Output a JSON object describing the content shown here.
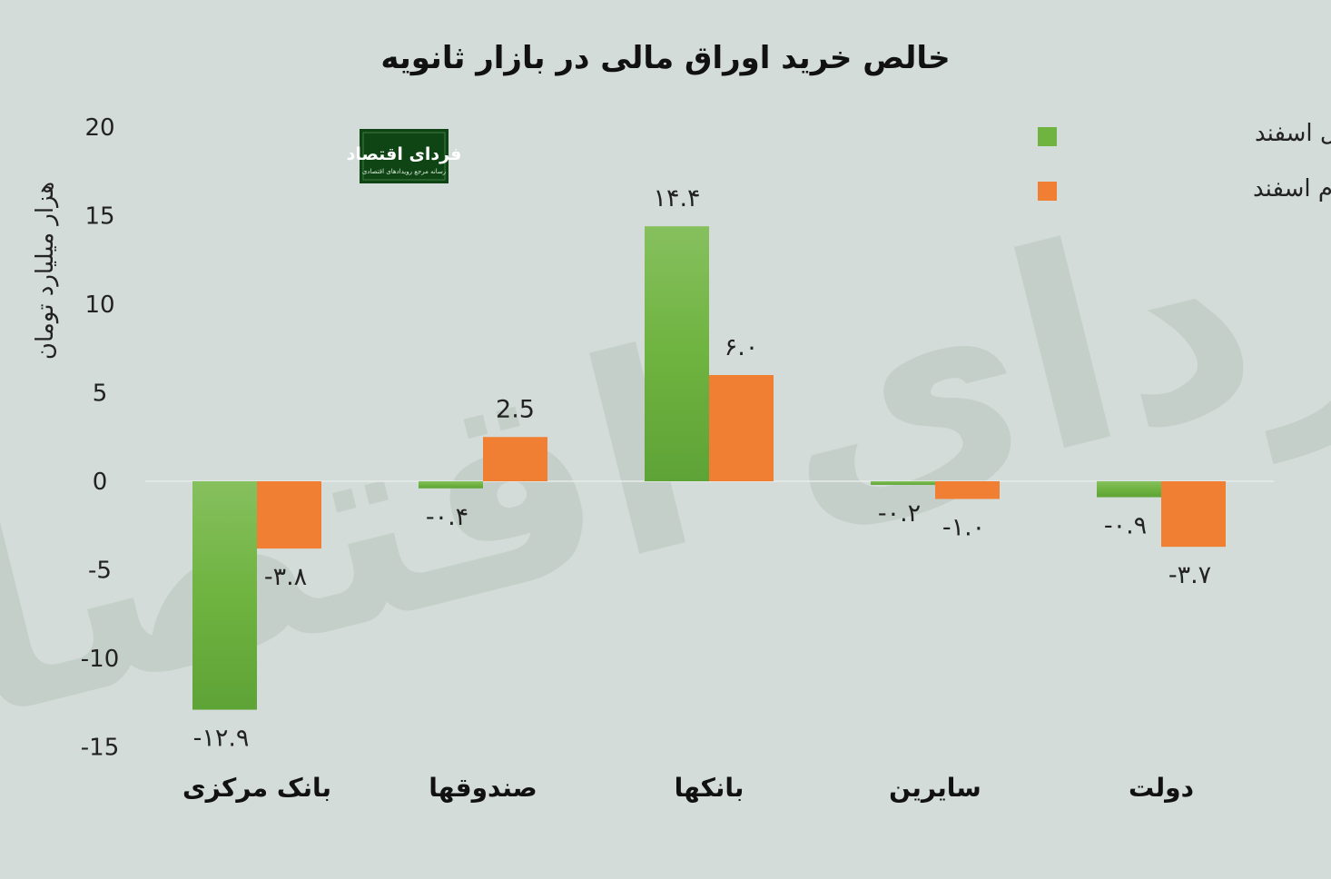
{
  "logo": {
    "text": "فردای اقتصاد",
    "subtitle": "رسانه مرجع رویدادهای اقتصادی"
  },
  "colors": {
    "background": "#d3dcd8",
    "series1": "#6fb340",
    "series2": "#f07f33",
    "logo_bg": "#0f4514"
  },
  "chart_data": {
    "type": "bar",
    "title": "خالص خرید اوراق مالی در بازار ثانویه",
    "ylabel": "هزار میلیارد تومان",
    "xlabel": "",
    "ylim": [
      -15,
      20
    ],
    "yticks": [
      {
        "value": 20,
        "label": "20"
      },
      {
        "value": 15,
        "label": "15"
      },
      {
        "value": 10,
        "label": "10"
      },
      {
        "value": 5,
        "label": "5"
      },
      {
        "value": 0,
        "label": "0"
      },
      {
        "value": -5,
        "label": "-5"
      },
      {
        "value": -10,
        "label": "-10"
      },
      {
        "value": -15,
        "label": "-15"
      }
    ],
    "categories": [
      "بانک مرکزی",
      "صندوقها",
      "بانکها",
      "سایرین",
      "دولت"
    ],
    "series": [
      {
        "name": "هفته اول اسفند",
        "color": "#6fb340",
        "values": [
          -12.9,
          -0.4,
          14.4,
          -0.2,
          -0.9
        ],
        "labels": [
          "-۱۲.۹",
          "-۰.۴",
          "۱۴.۴",
          "-۰.۲",
          "-۰.۹"
        ]
      },
      {
        "name": "هفته دوم اسفند",
        "color": "#f07f33",
        "values": [
          -3.8,
          2.5,
          6.0,
          -1.0,
          -3.7
        ],
        "labels": [
          "-۳.۸",
          "2.5",
          "۶.۰",
          "-۱.۰",
          "-۳.۷"
        ]
      }
    ],
    "legend_position": "top-right",
    "grid": false
  }
}
